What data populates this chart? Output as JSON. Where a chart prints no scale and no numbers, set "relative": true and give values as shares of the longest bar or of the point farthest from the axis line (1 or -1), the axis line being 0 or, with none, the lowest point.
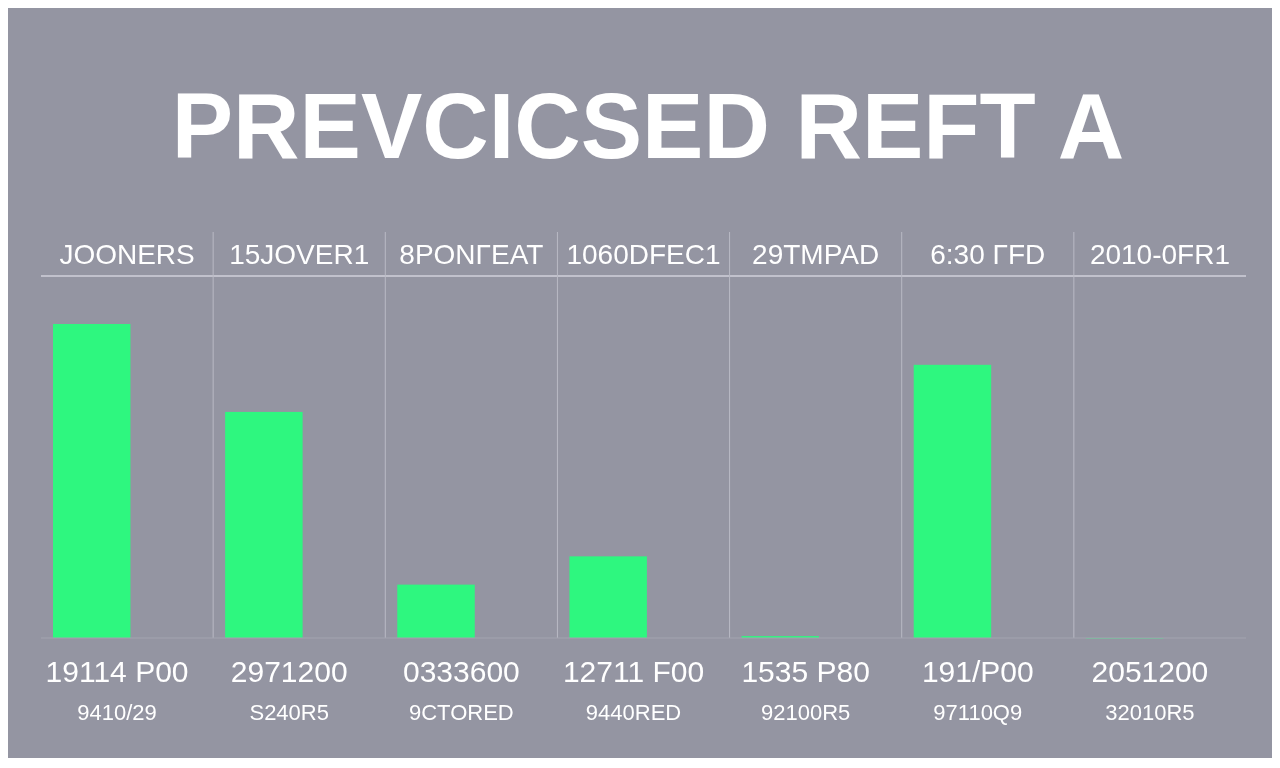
{
  "chart_data": {
    "type": "bar",
    "title": "PREVCICSED REFT A",
    "relative": true,
    "categories": [
      "JOONERS",
      "15JOVER1",
      "8PONΓEAT",
      "1060DFEC1",
      "29TMPAD",
      "6:30 ΓFD",
      "2010-0FR1"
    ],
    "values": [
      1,
      0.72,
      0.17,
      0.26,
      0.006,
      0.87,
      0
    ],
    "color": "#2ef77f",
    "annotations": [
      "19114 P00",
      "9410/29",
      "2971200",
      "S240R5",
      "0333600",
      "9CTORED",
      "12711 F00",
      "9440RED",
      "1535 P80",
      "92100R5",
      "191/P00",
      "97110Q9",
      "2051200",
      "32010R5"
    ]
  }
}
